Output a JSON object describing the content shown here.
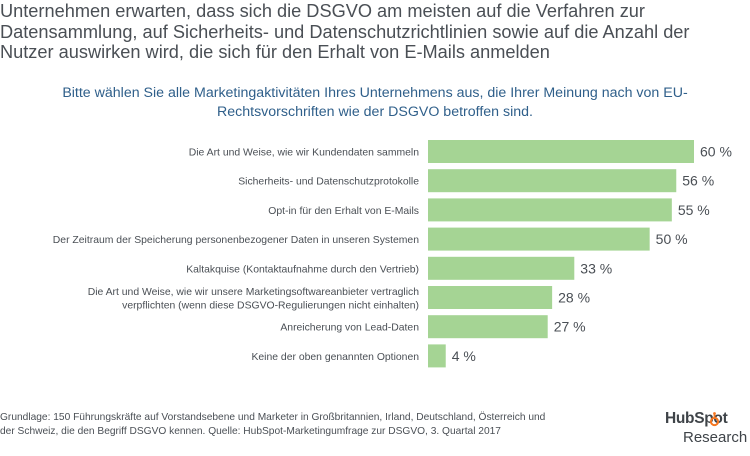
{
  "header": {
    "title": "Unternehmen erwarten, dass sich die DSGVO am meisten auf die Verfahren zur Datensammlung, auf Sicherheits- und Datenschutzrichtlinien sowie auf die Anzahl der Nutzer auswirken wird, die sich für den Erhalt von E-Mails anmelden",
    "subtitle": "Bitte wählen Sie alle Marketingaktivitäten Ihres Unternehmens aus, die Ihrer Meinung nach von EU-Rechtsvorschriften wie der DSGVO betroffen sind."
  },
  "chart_data": {
    "type": "bar",
    "orientation": "horizontal",
    "title": "Bitte wählen Sie alle Marketingaktivitäten Ihres Unternehmens aus, die Ihrer Meinung nach von EU-Rechtsvorschriften wie der DSGVO betroffen sind.",
    "categories": [
      "Die Art und Weise, wie wir Kundendaten sammeln",
      "Sicherheits- und Datenschutzprotokolle",
      "Opt-in für den Erhalt von E-Mails",
      "Der Zeitraum der Speicherung personenbezogener Daten in unseren Systemen",
      "Kaltakquise (Kontaktaufnahme durch den Vertrieb)",
      "Die Art und Weise, wie wir unsere Marketingsoftwareanbieter vertraglich verpflichten (wenn diese DSGVO-Regulierungen nicht einhalten)",
      "Anreicherung von Lead-Daten",
      "Keine der oben genannten Optionen"
    ],
    "category_lines": [
      [
        "Die Art und Weise, wie wir Kundendaten sammeln"
      ],
      [
        "Sicherheits- und Datenschutzprotokolle"
      ],
      [
        "Opt-in für den Erhalt von E-Mails"
      ],
      [
        "Der Zeitraum der Speicherung personenbezogener Daten in unseren Systemen"
      ],
      [
        "Kaltakquise (Kontaktaufnahme durch den Vertrieb)"
      ],
      [
        "Die Art und Weise, wie wir unsere Marketingsoftwareanbieter vertraglich",
        "verpflichten (wenn diese DSGVO-Regulierungen nicht einhalten)"
      ],
      [
        "Anreicherung von Lead-Daten"
      ],
      [
        "Keine der oben genannten Optionen"
      ]
    ],
    "values": [
      60,
      56,
      55,
      50,
      33,
      28,
      27,
      4
    ],
    "value_labels": [
      "60 %",
      "56 %",
      "55 %",
      "50 %",
      "33 %",
      "28 %",
      "27 %",
      "4 %"
    ],
    "unit": "%",
    "xlim": [
      0,
      60
    ],
    "grid": false,
    "legend": "none",
    "bar_color": "#a5d494"
  },
  "footer": {
    "source": "Grundlage: 150 Führungskräfte auf Vorstandsebene und Marketer in Großbritannien, Irland, Deutschland, Österreich und der Schweiz, die den Begriff DSGVO kennen. Quelle: HubSpot-Marketingumfrage zur DSGVO, 3. Quartal 2017"
  },
  "logo": {
    "name": "HubSpot",
    "sub": "Research",
    "color": "#3f4449",
    "accent": "#f57722"
  }
}
